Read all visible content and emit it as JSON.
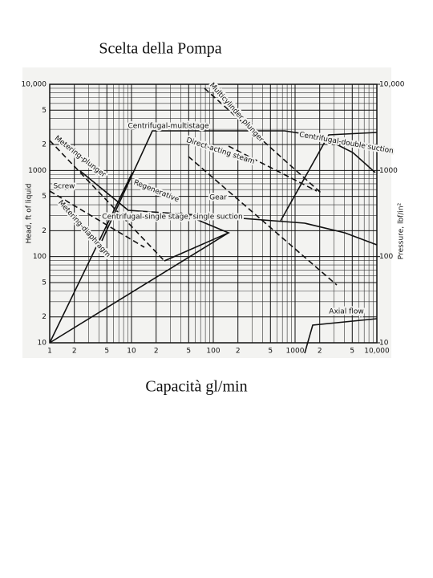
{
  "chart_data": {
    "type": "line",
    "title": "Scelta della Pompa",
    "xlabel": "Capacità gl/min",
    "ylabel": "Head, ft of liquid",
    "y2label": "Pressure, lbf/in²",
    "log_scale": true,
    "grid": true,
    "xlim": [
      1,
      10000
    ],
    "ylim": [
      10,
      10000
    ],
    "y2lim": [
      10,
      10000
    ],
    "xticks": [
      1,
      2,
      5,
      10,
      {
        "value": 20,
        "label": "2"
      },
      {
        "value": 50,
        "label": "5"
      },
      100,
      {
        "value": 200,
        "label": "2"
      },
      {
        "value": 500,
        "label": "5"
      },
      1000,
      {
        "value": 2000,
        "label": "2"
      },
      {
        "value": 5000,
        "label": "5"
      },
      {
        "value": 10000,
        "label": "10,000"
      }
    ],
    "yticks": [
      {
        "value": 10000,
        "label": "10,000"
      },
      {
        "value": 5000,
        "label": "5"
      },
      {
        "value": 2000,
        "label": "2"
      },
      1000,
      {
        "value": 500,
        "label": "5"
      },
      {
        "value": 200,
        "label": "2"
      },
      100,
      {
        "value": 50,
        "label": "5"
      },
      {
        "value": 20,
        "label": "2"
      },
      10
    ],
    "y2ticks": [
      {
        "value": 10000,
        "label": "10,000"
      },
      1000,
      100,
      10
    ],
    "annotations": [
      "Multicylinder plunger",
      "Centrifugal-multistage",
      "Centrifugal-double suction",
      "Direct-acting steam",
      "Metering-plunger",
      "Gear",
      "Screw",
      "Regenerative",
      "Centrifugal-single stage, single suction",
      "Metering-diaphragm",
      "Axial flow"
    ]
  }
}
